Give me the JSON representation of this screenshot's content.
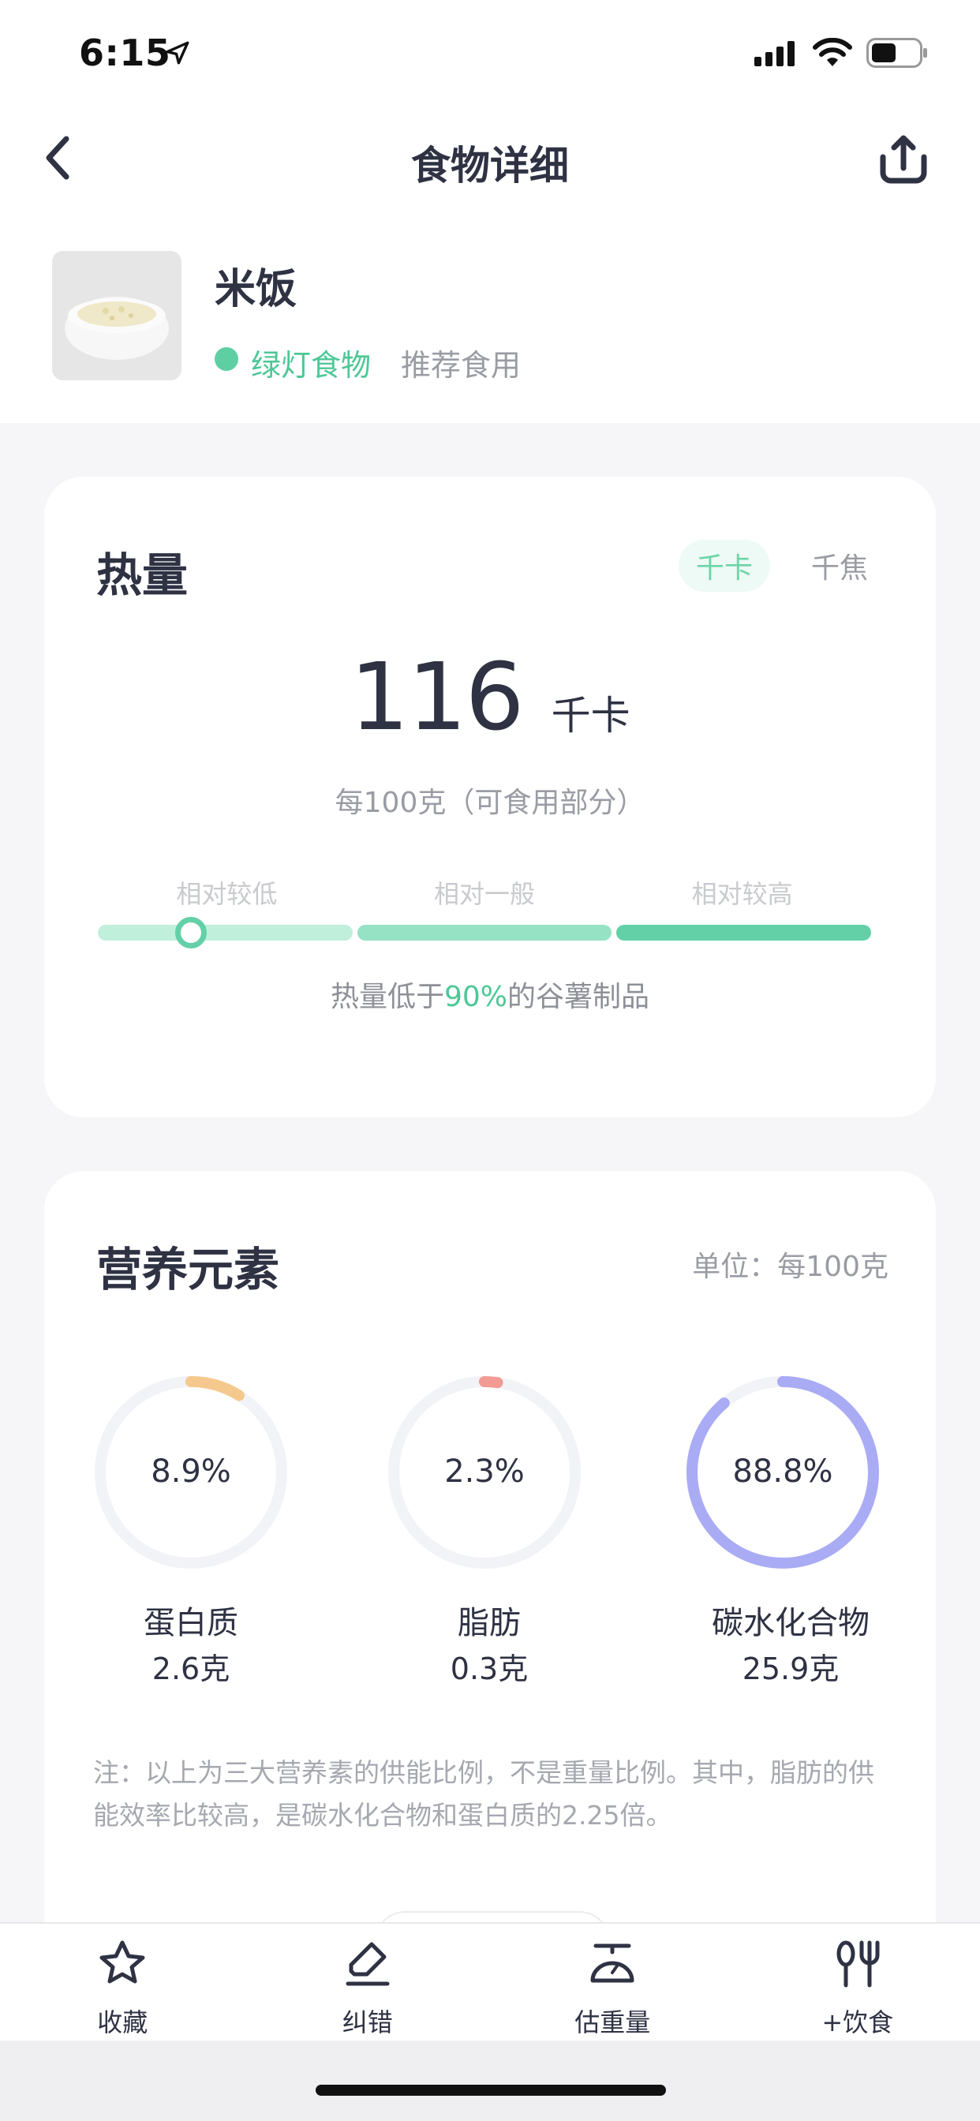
{
  "status_bar": {
    "time": "6:15"
  },
  "nav": {
    "title": "食物详细",
    "back_icon": "chevron-left-icon",
    "share_icon": "share-icon"
  },
  "food": {
    "name": "米饭",
    "light_label": "绿灯食物",
    "recommendation": "推荐食用",
    "light_color": "#5ecfa3"
  },
  "calorie": {
    "title": "热量",
    "units": [
      "千卡",
      "千焦"
    ],
    "active_unit_index": 0,
    "value": "116",
    "value_unit": "千卡",
    "basis": "每100克（可食用部分）",
    "levels": [
      "相对较低",
      "相对一般",
      "相对较高"
    ],
    "knob_fraction": 0.12,
    "compare_prefix": "热量低于",
    "compare_pct": "90%",
    "compare_suffix": "的谷薯制品"
  },
  "nutrients": {
    "title": "营养元素",
    "unit_note": "单位：每100克",
    "macros": [
      {
        "name": "蛋白质",
        "pct_label": "8.9%",
        "pct": 8.9,
        "amount": "2.6克",
        "color": "#f5c98e"
      },
      {
        "name": "脂肪",
        "pct_label": "2.3%",
        "pct": 2.3,
        "amount": "0.3克",
        "color": "#f29b94"
      },
      {
        "name": "碳水化合物",
        "pct_label": "88.8%",
        "pct": 88.8,
        "amount": "25.9克",
        "color": "#a9abf5"
      }
    ],
    "note": "注：以上为三大营养素的供能比例，不是重量比例。其中，脂肪的供能效率比较高，是碳水化合物和蛋白质的2.25倍。"
  },
  "toolbar": {
    "items": [
      {
        "label": "收藏",
        "icon": "star-icon"
      },
      {
        "label": "纠错",
        "icon": "eraser-icon"
      },
      {
        "label": "估重量",
        "icon": "scale-icon"
      },
      {
        "label": "+饮食",
        "icon": "fork-spoon-icon"
      }
    ]
  },
  "colors": {
    "accent": "#4cc896",
    "ring_track": "#f2f3f7"
  }
}
